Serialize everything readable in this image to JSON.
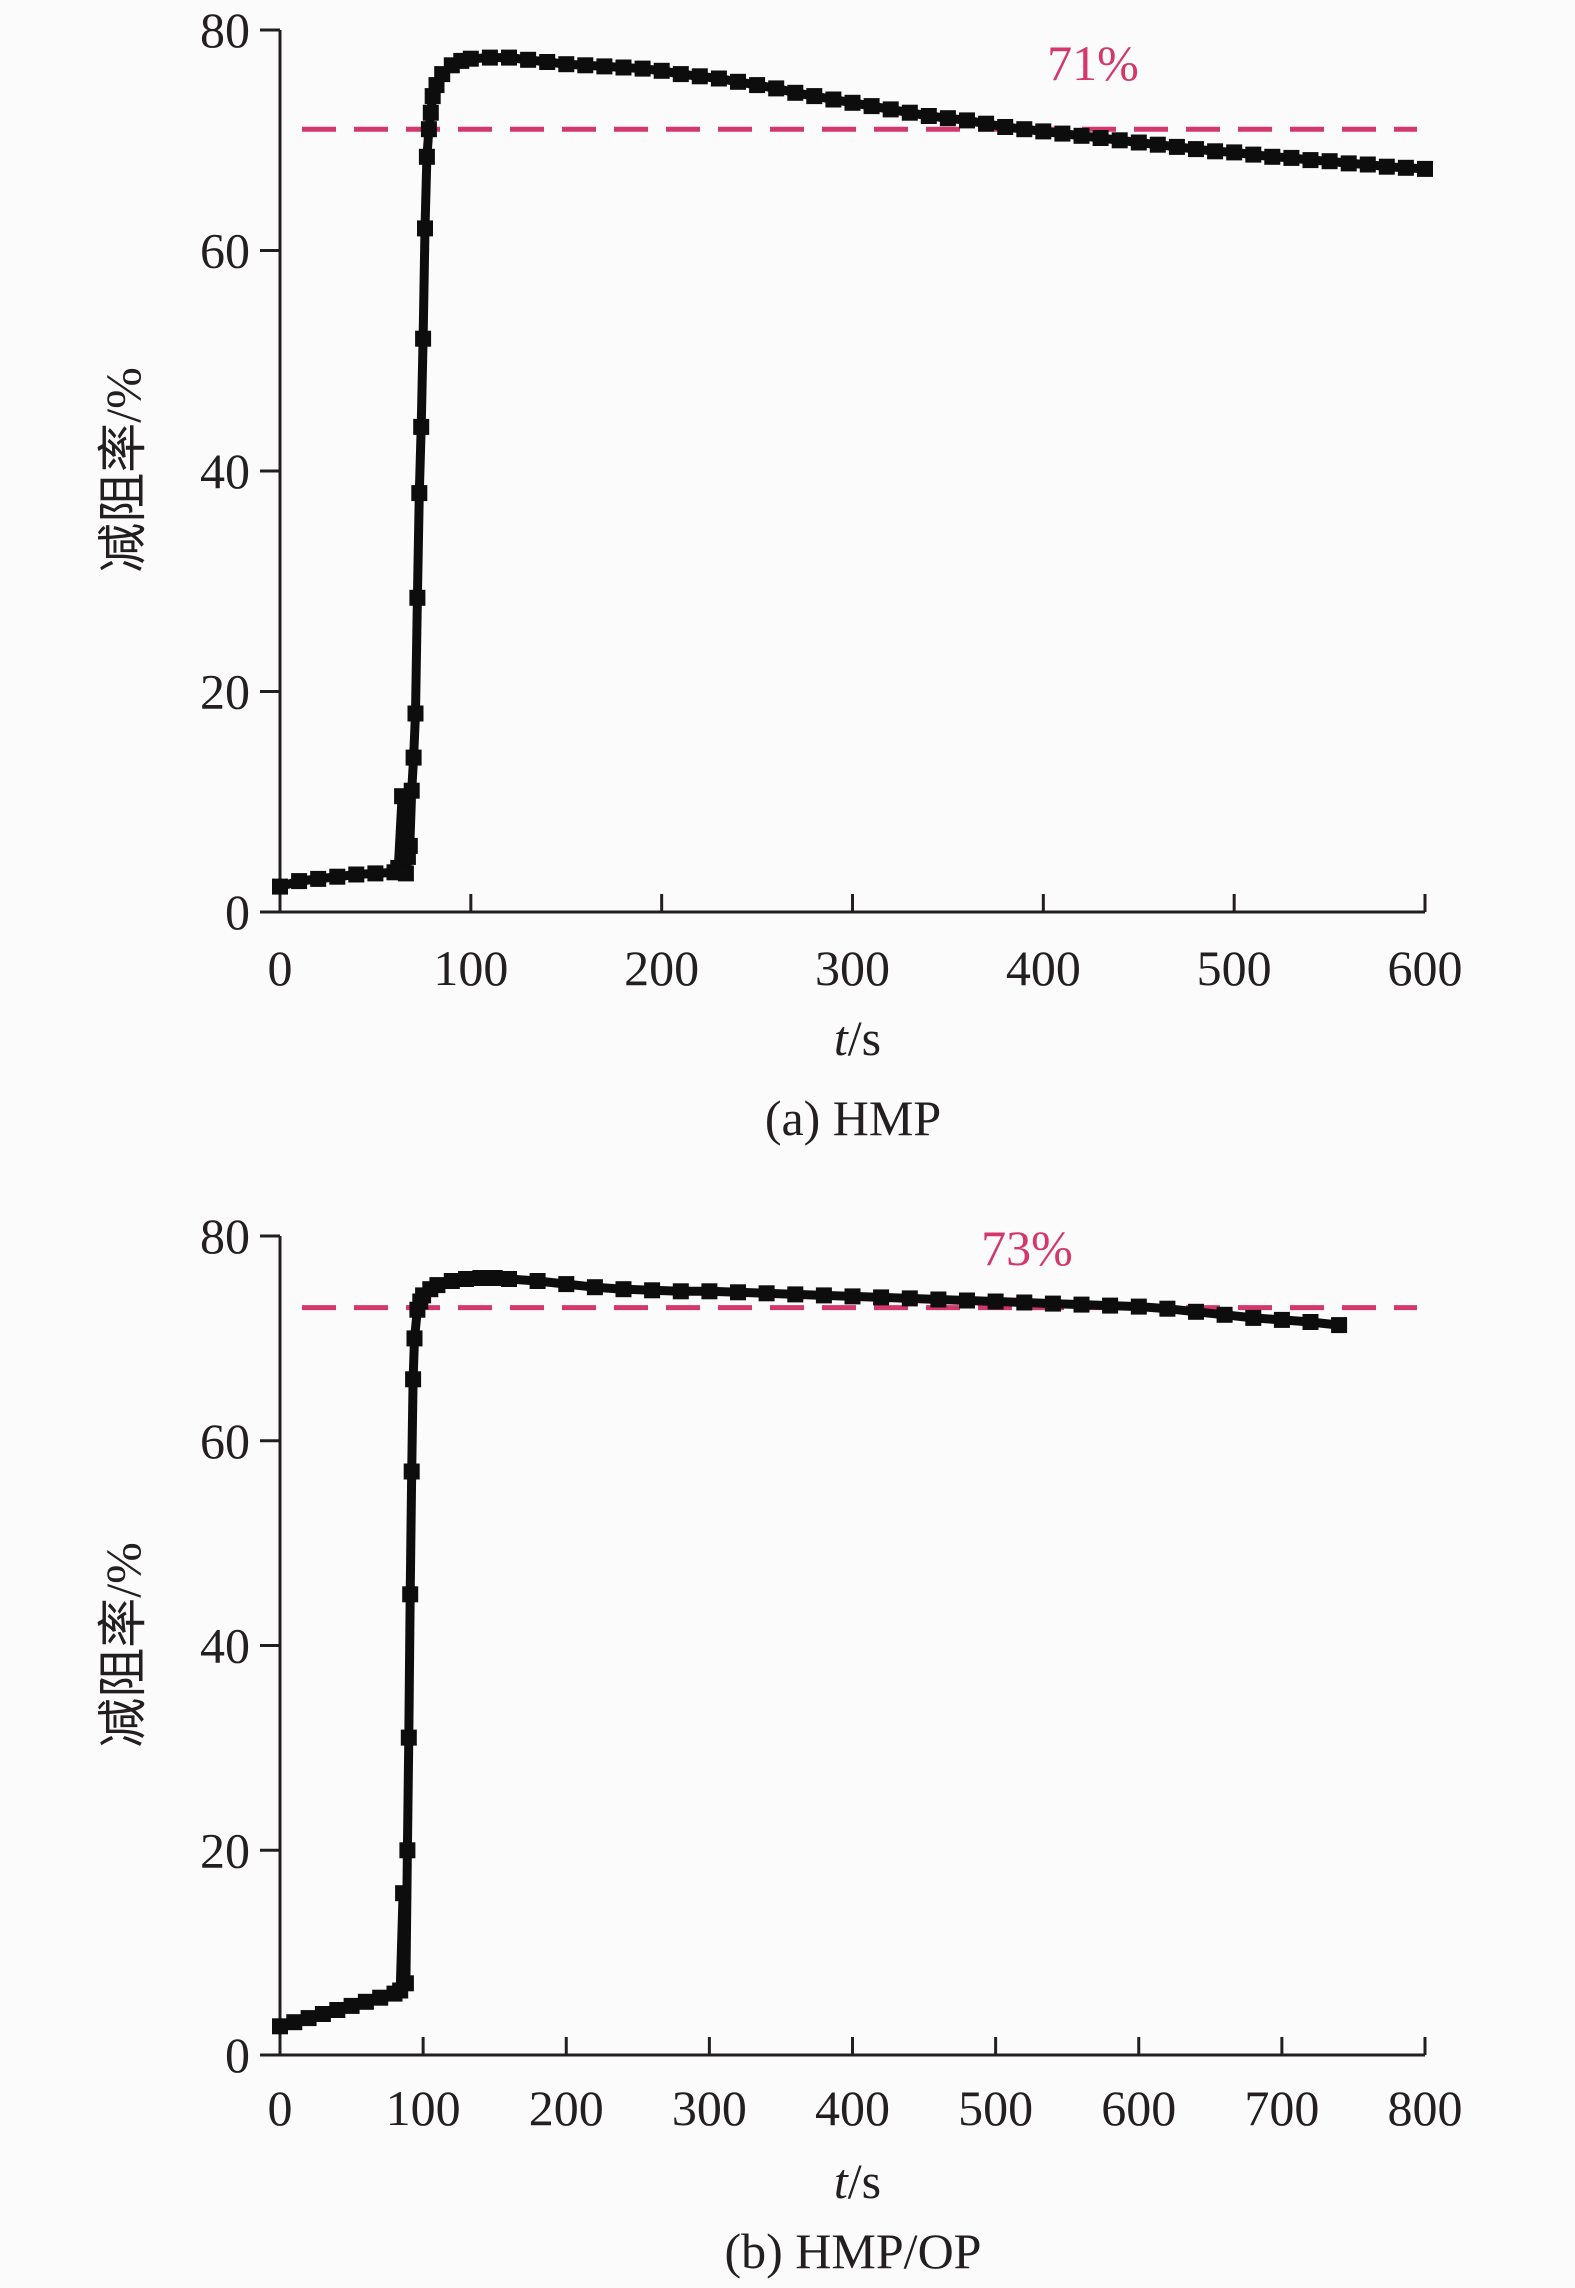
{
  "chart_data": [
    {
      "type": "line",
      "caption": "(a) HMP",
      "xlabel_italic": "t",
      "xlabel_unit": "/s",
      "ylabel": "减阻率/%",
      "xlim": [
        0,
        600
      ],
      "ylim": [
        0,
        80
      ],
      "x_ticks": [
        0,
        100,
        200,
        300,
        400,
        500,
        600
      ],
      "y_ticks": [
        0,
        20,
        40,
        60,
        80
      ],
      "reference_line": {
        "value": 71,
        "label": "71%",
        "style": "dashed"
      },
      "series": [
        {
          "x": [
            0,
            10,
            20,
            30,
            40,
            50,
            60,
            62,
            64,
            66,
            67,
            68,
            69,
            70,
            71,
            72,
            73,
            74,
            75,
            76,
            77,
            78,
            79,
            80,
            82,
            85,
            90,
            95,
            100,
            110,
            120,
            130,
            140,
            150,
            160,
            170,
            180,
            190,
            200,
            210,
            220,
            230,
            240,
            250,
            260,
            270,
            280,
            290,
            300,
            310,
            320,
            330,
            340,
            350,
            360,
            370,
            380,
            390,
            400,
            410,
            420,
            430,
            440,
            450,
            460,
            470,
            480,
            490,
            500,
            510,
            520,
            530,
            540,
            550,
            560,
            570,
            580,
            590,
            600
          ],
          "y": [
            2.3,
            2.8,
            3.0,
            3.2,
            3.4,
            3.5,
            3.6,
            4.0,
            10.5,
            3.5,
            5.0,
            6.0,
            11.0,
            14.0,
            18.0,
            28.5,
            38.0,
            44.0,
            52.0,
            62.0,
            68.5,
            71.0,
            72.5,
            74.0,
            75.0,
            76.0,
            76.8,
            77.2,
            77.4,
            77.5,
            77.5,
            77.3,
            77.1,
            76.9,
            76.8,
            76.7,
            76.6,
            76.5,
            76.3,
            76.0,
            75.8,
            75.6,
            75.3,
            75.0,
            74.7,
            74.3,
            74.0,
            73.7,
            73.4,
            73.1,
            72.8,
            72.5,
            72.2,
            72.0,
            71.8,
            71.5,
            71.2,
            71.0,
            70.8,
            70.6,
            70.4,
            70.2,
            70.0,
            69.8,
            69.6,
            69.4,
            69.2,
            69.0,
            68.9,
            68.7,
            68.5,
            68.4,
            68.2,
            68.1,
            67.9,
            67.8,
            67.6,
            67.5,
            67.4
          ]
        }
      ]
    },
    {
      "type": "line",
      "caption": "(b) HMP/OP",
      "xlabel_italic": "t",
      "xlabel_unit": "/s",
      "ylabel": "减阻率/%",
      "xlim": [
        0,
        800
      ],
      "ylim": [
        0,
        80
      ],
      "x_ticks": [
        0,
        100,
        200,
        300,
        400,
        500,
        600,
        700,
        800
      ],
      "y_ticks": [
        0,
        20,
        40,
        60,
        80
      ],
      "reference_line": {
        "value": 73,
        "label": "73%",
        "style": "dashed"
      },
      "series": [
        {
          "x": [
            0,
            10,
            20,
            30,
            40,
            50,
            60,
            70,
            80,
            84,
            86,
            88,
            89,
            90,
            91,
            92,
            93,
            94,
            96,
            98,
            100,
            105,
            110,
            120,
            130,
            140,
            150,
            160,
            180,
            200,
            220,
            240,
            260,
            280,
            300,
            320,
            340,
            360,
            380,
            400,
            420,
            440,
            460,
            480,
            500,
            520,
            540,
            560,
            580,
            600,
            620,
            640,
            660,
            680,
            700,
            720,
            740
          ],
          "y": [
            2.8,
            3.2,
            3.6,
            4.0,
            4.4,
            4.8,
            5.2,
            5.6,
            6.0,
            6.3,
            15.8,
            7.0,
            20.0,
            31.0,
            45.0,
            57.0,
            66.0,
            70.0,
            72.8,
            73.6,
            74.2,
            74.8,
            75.2,
            75.6,
            75.8,
            75.9,
            75.9,
            75.8,
            75.6,
            75.3,
            75.0,
            74.8,
            74.7,
            74.6,
            74.6,
            74.5,
            74.4,
            74.3,
            74.2,
            74.1,
            74.0,
            73.9,
            73.8,
            73.7,
            73.6,
            73.5,
            73.4,
            73.3,
            73.2,
            73.1,
            72.9,
            72.6,
            72.3,
            72.0,
            71.8,
            71.6,
            71.3
          ]
        }
      ]
    }
  ],
  "colors": {
    "axis": "#231f20",
    "data": "#0d0d0d",
    "reference": "#d4386a",
    "background": "#fbfbfb"
  }
}
